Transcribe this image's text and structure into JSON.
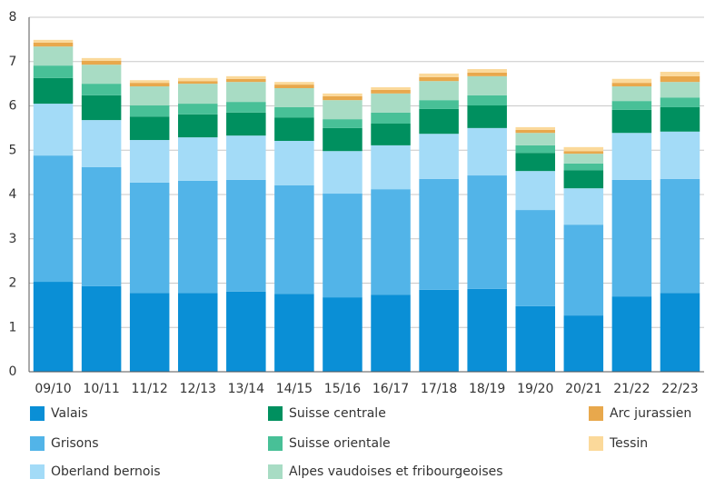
{
  "chart_data": {
    "type": "stacked_bar",
    "categories": [
      "09/10",
      "10/11",
      "11/12",
      "12/13",
      "13/14",
      "14/15",
      "15/16",
      "16/17",
      "17/18",
      "18/19",
      "19/20",
      "20/21",
      "21/22",
      "22/23"
    ],
    "series": [
      {
        "name": "Valais",
        "color": "#0a8fd6",
        "values": [
          2.03,
          1.93,
          1.78,
          1.78,
          1.81,
          1.76,
          1.68,
          1.74,
          1.85,
          1.87,
          1.48,
          1.27,
          1.7,
          1.78
        ]
      },
      {
        "name": "Grisons",
        "color": "#52b4e8",
        "values": [
          2.85,
          2.69,
          2.49,
          2.53,
          2.52,
          2.45,
          2.34,
          2.38,
          2.5,
          2.56,
          2.17,
          2.05,
          2.63,
          2.57
        ]
      },
      {
        "name": "Oberland bernois",
        "color": "#a3dbf7",
        "values": [
          1.17,
          1.06,
          0.96,
          0.98,
          1.0,
          1.0,
          0.96,
          0.99,
          1.02,
          1.07,
          0.88,
          0.82,
          1.06,
          1.07
        ]
      },
      {
        "name": "Suisse centrale",
        "color": "#00905f",
        "values": [
          0.58,
          0.56,
          0.53,
          0.52,
          0.52,
          0.53,
          0.52,
          0.49,
          0.56,
          0.51,
          0.41,
          0.41,
          0.52,
          0.55
        ]
      },
      {
        "name": "Suisse orientale",
        "color": "#48c097",
        "values": [
          0.28,
          0.26,
          0.25,
          0.24,
          0.24,
          0.23,
          0.2,
          0.25,
          0.2,
          0.23,
          0.17,
          0.15,
          0.2,
          0.22
        ]
      },
      {
        "name": "Alpes vaudoises et fribourgeoises",
        "color": "#a8dcc4",
        "values": [
          0.43,
          0.43,
          0.43,
          0.45,
          0.45,
          0.43,
          0.43,
          0.43,
          0.43,
          0.43,
          0.28,
          0.22,
          0.33,
          0.35
        ]
      },
      {
        "name": "Arc jurassien",
        "color": "#e8a84c",
        "values": [
          0.09,
          0.09,
          0.08,
          0.06,
          0.07,
          0.08,
          0.09,
          0.08,
          0.09,
          0.08,
          0.07,
          0.06,
          0.08,
          0.13
        ]
      },
      {
        "name": "Tessin",
        "color": "#fbd99a",
        "values": [
          0.06,
          0.06,
          0.06,
          0.07,
          0.06,
          0.06,
          0.06,
          0.06,
          0.08,
          0.08,
          0.06,
          0.09,
          0.09,
          0.1
        ]
      }
    ],
    "ylim": [
      0,
      8
    ],
    "yticks": [
      0,
      1,
      2,
      3,
      4,
      5,
      6,
      7,
      8
    ],
    "grid": true
  }
}
